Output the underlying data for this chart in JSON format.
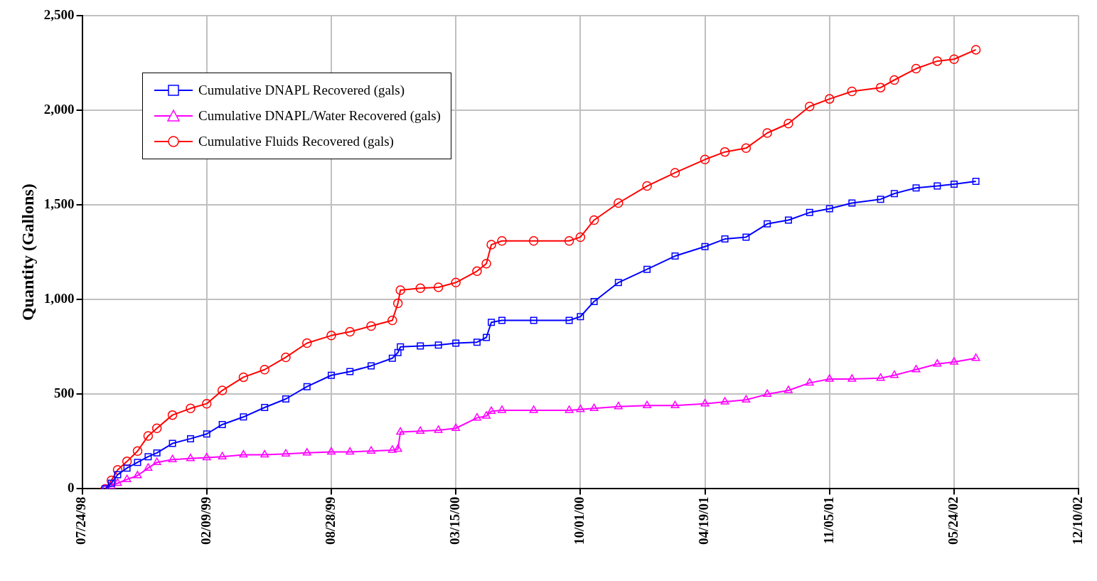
{
  "chart_data": {
    "type": "line",
    "ylabel": "Quantity (Gallons)",
    "x": [
      "1998-08-30",
      "1998-09-09",
      "1998-09-19",
      "1998-10-04",
      "1998-10-21",
      "1998-11-07",
      "1998-11-21",
      "1998-12-16",
      "1999-01-14",
      "1999-02-09",
      "1999-03-06",
      "1999-04-09",
      "1999-05-13",
      "1999-06-16",
      "1999-07-20",
      "1999-08-28",
      "1999-09-27",
      "1999-10-31",
      "1999-12-04",
      "1999-12-13",
      "1999-12-17",
      "2000-01-18",
      "2000-02-16",
      "2000-03-15",
      "2000-04-18",
      "2000-05-03",
      "2000-05-11",
      "2000-05-28",
      "2000-07-18",
      "2000-09-13",
      "2000-10-01",
      "2000-10-23",
      "2000-12-01",
      "2001-01-16",
      "2001-03-02",
      "2001-04-19",
      "2001-05-21",
      "2001-06-24",
      "2001-07-28",
      "2001-08-31",
      "2001-10-04",
      "2001-11-05",
      "2001-12-11",
      "2002-01-26",
      "2002-02-17",
      "2002-03-24",
      "2002-04-27",
      "2002-05-24",
      "2002-06-28"
    ],
    "series": [
      {
        "name": "Cumulative DNAPL Recovered (gals)",
        "color": "#0000ff",
        "marker": "square",
        "values": [
          0,
          30,
          75,
          110,
          140,
          170,
          190,
          240,
          265,
          290,
          340,
          380,
          430,
          475,
          540,
          600,
          620,
          650,
          690,
          720,
          750,
          755,
          760,
          770,
          775,
          800,
          880,
          890,
          890,
          890,
          910,
          990,
          1090,
          1160,
          1230,
          1280,
          1320,
          1330,
          1400,
          1420,
          1460,
          1480,
          1510,
          1530,
          1560,
          1590,
          1600,
          1610,
          1625
        ]
      },
      {
        "name": "Cumulative DNAPL/Water Recovered (gals)",
        "color": "#ff00ff",
        "marker": "triangle",
        "values": [
          0,
          15,
          30,
          50,
          70,
          110,
          140,
          155,
          160,
          165,
          170,
          180,
          180,
          185,
          190,
          195,
          195,
          200,
          205,
          210,
          300,
          305,
          310,
          320,
          375,
          385,
          410,
          415,
          415,
          415,
          420,
          425,
          435,
          440,
          440,
          450,
          460,
          470,
          500,
          520,
          560,
          580,
          580,
          585,
          600,
          630,
          660,
          670,
          690
        ]
      },
      {
        "name": "Cumulative Fluids Recovered (gals)",
        "color": "#ff0000",
        "marker": "circle",
        "values": [
          0,
          45,
          100,
          145,
          200,
          280,
          320,
          390,
          425,
          450,
          520,
          590,
          630,
          695,
          770,
          810,
          830,
          860,
          890,
          980,
          1050,
          1060,
          1065,
          1090,
          1150,
          1190,
          1290,
          1310,
          1310,
          1310,
          1330,
          1420,
          1510,
          1600,
          1670,
          1740,
          1780,
          1800,
          1880,
          1930,
          2020,
          2060,
          2100,
          2120,
          2160,
          2220,
          2260,
          2270,
          2320
        ]
      }
    ],
    "xlim": [
      "1998-07-24",
      "2002-12-10"
    ],
    "xticks": [
      {
        "value": "1998-07-24",
        "label": "07/24/98"
      },
      {
        "value": "1999-02-09",
        "label": "02/09/99"
      },
      {
        "value": "1999-08-28",
        "label": "08/28/99"
      },
      {
        "value": "2000-03-15",
        "label": "03/15/00"
      },
      {
        "value": "2000-10-01",
        "label": "10/01/00"
      },
      {
        "value": "2001-04-19",
        "label": "04/19/01"
      },
      {
        "value": "2001-11-05",
        "label": "11/05/01"
      },
      {
        "value": "2002-05-24",
        "label": "05/24/02"
      },
      {
        "value": "2002-12-10",
        "label": "12/10/02"
      }
    ],
    "ylim": [
      0,
      2500
    ],
    "yticks": [
      0,
      500,
      {
        "value": 1000,
        "label": "1,000"
      },
      {
        "value": 1500,
        "label": "1,500"
      },
      {
        "value": 2000,
        "label": "2,000"
      },
      {
        "value": 2500,
        "label": "2,500"
      }
    ],
    "grid": true,
    "legend": "top left",
    "line_style": "solid"
  }
}
